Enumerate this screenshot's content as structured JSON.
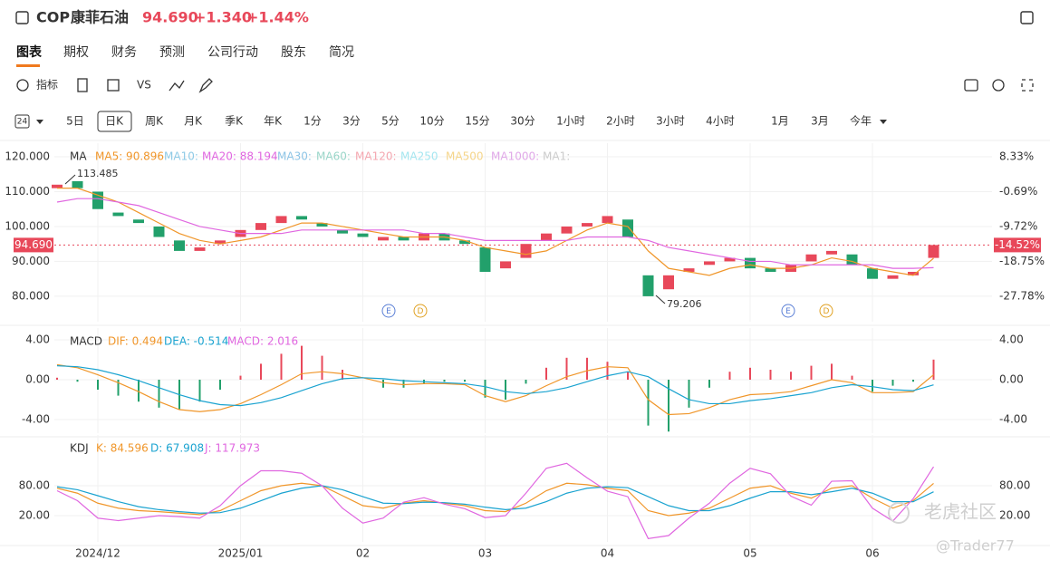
{
  "header": {
    "symbol": "COP",
    "name": "康菲石油",
    "price": "94.690",
    "change": "+1.340",
    "percent": "+1.44%"
  },
  "tabs": [
    "图表",
    "期权",
    "财务",
    "预测",
    "公司行动",
    "股东",
    "简况"
  ],
  "tools": [
    "指标",
    "VS"
  ],
  "period_icon": "24",
  "periods": [
    "5日",
    "日K",
    "周K",
    "月K",
    "季K",
    "年K",
    "1分",
    "3分",
    "5分",
    "10分",
    "15分",
    "30分",
    "1小时",
    "2小时",
    "3小时",
    "4小时",
    "1月",
    "3月",
    "今年"
  ],
  "watermark": [
    "老虎社区",
    "@Trader77"
  ],
  "chart_data": [
    {
      "type": "candlestick",
      "categories": [
        null,
        null,
        "2024/12",
        null,
        null,
        null,
        null,
        null,
        null,
        "2025/01",
        null,
        null,
        null,
        null,
        null,
        "02",
        null,
        null,
        null,
        null,
        null,
        "03",
        null,
        null,
        null,
        null,
        null,
        "04",
        null,
        null,
        null,
        null,
        null,
        null,
        "05",
        null,
        null,
        null,
        null,
        null,
        "06",
        null,
        null,
        null
      ],
      "open": [
        111,
        113,
        110,
        104,
        102,
        100,
        96,
        93,
        95,
        97,
        99,
        101,
        103,
        101,
        99,
        98,
        96,
        97,
        96,
        98,
        96,
        94,
        88,
        91,
        96,
        98,
        100,
        101,
        102,
        86,
        82,
        87,
        89,
        90,
        91,
        88,
        87,
        90,
        92,
        92,
        88,
        85,
        86,
        91
      ],
      "close": [
        112,
        111,
        105,
        103,
        101,
        97,
        93,
        94,
        96,
        99,
        101,
        103,
        102,
        100,
        98,
        97,
        97,
        96,
        98,
        96,
        95,
        87,
        90,
        95,
        98,
        100,
        101,
        103,
        97,
        80,
        86,
        88,
        90,
        91,
        88,
        87,
        89,
        92,
        93,
        89,
        85,
        86,
        87,
        94.69
      ],
      "up_color": "#e8485a",
      "down_color": "#22a06b",
      "series": [
        {
          "color": "#f0962a",
          "values": [
            111,
            111,
            109,
            107,
            104,
            101,
            98,
            96,
            95,
            96,
            97,
            99,
            101,
            101,
            100,
            99,
            98,
            97,
            97,
            97,
            96,
            94,
            93,
            92,
            93,
            96,
            99,
            101,
            100,
            93,
            88,
            87,
            86,
            88,
            89,
            88,
            88,
            89,
            91,
            90,
            88,
            87,
            86,
            90.896
          ]
        },
        {
          "color": "#e067e0",
          "values": [
            107,
            108,
            108,
            107,
            106,
            104,
            102,
            100,
            99,
            98,
            98,
            98,
            99,
            99,
            99,
            99,
            99,
            99,
            98,
            98,
            97,
            96,
            96,
            96,
            96,
            96,
            97,
            97,
            97,
            96,
            94,
            93,
            92,
            91,
            90,
            90,
            89,
            89,
            89,
            89,
            89,
            88,
            88,
            88.194
          ]
        }
      ],
      "legend": [
        {
          "label": "MA",
          "color": "#333333"
        },
        {
          "label": "MA5: 90.896",
          "color": "#f0962a"
        },
        {
          "label": "MA10:",
          "color": "#8ecae6"
        },
        {
          "label": "MA20: 88.194",
          "color": "#e067e0"
        },
        {
          "label": "MA30:",
          "color": "#8ec5e6"
        },
        {
          "label": "MA60:",
          "color": "#9ad6c9"
        },
        {
          "label": "MA120:",
          "color": "#f4a7b0"
        },
        {
          "label": "MA250",
          "color": "#a5e6f0"
        },
        {
          "label": "MA500",
          "color": "#f5d58a"
        },
        {
          "label": "MA1000:",
          "color": "#e0a8e8"
        },
        {
          "label": "MA1:",
          "color": "#cccccc"
        }
      ],
      "annotations": [
        "113.485",
        "79.206"
      ],
      "events": [
        "E",
        "D",
        "E",
        "D"
      ],
      "last_price": {
        "value": 94.69,
        "label": "94.690"
      },
      "last_percent": {
        "value": -14.52,
        "label": "-14.52%"
      },
      "ylim": [
        72.7,
        123.9
      ],
      "yticks": [
        {
          "value": 120,
          "label": "120.000"
        },
        {
          "value": 110,
          "label": "110.000"
        },
        {
          "value": 100,
          "label": "100.000"
        },
        {
          "value": 90,
          "label": "90.000"
        },
        {
          "value": 80,
          "label": "80.000"
        }
      ],
      "y2lim": [
        -34.37,
        11.85
      ],
      "y2ticks": [
        {
          "value": 8.33,
          "label": "8.33%"
        },
        {
          "value": -0.69,
          "label": "-0.69%"
        },
        {
          "value": -9.72,
          "label": "-9.72%"
        },
        {
          "value": -18.75,
          "label": "-18.75%"
        },
        {
          "value": -27.78,
          "label": "-27.78%"
        }
      ]
    },
    {
      "type": "combo",
      "series": [
        {
          "color": "#f0962a",
          "values": [
            1.5,
            1.2,
            0.5,
            -0.3,
            -1.2,
            -2.2,
            -3.0,
            -3.2,
            -3.0,
            -2.4,
            -1.5,
            -0.5,
            0.6,
            0.8,
            0.6,
            0.2,
            -0.3,
            -0.5,
            -0.4,
            -0.4,
            -0.5,
            -1.6,
            -2.2,
            -1.6,
            -0.6,
            0.3,
            0.9,
            1.3,
            1.2,
            -2.0,
            -3.5,
            -3.4,
            -2.8,
            -2.0,
            -1.5,
            -1.4,
            -1.2,
            -0.6,
            0.0,
            -0.3,
            -1.3,
            -1.3,
            -1.2,
            0.494
          ]
        },
        {
          "color": "#1aa3d0",
          "values": [
            1.4,
            1.3,
            1.0,
            0.5,
            -0.1,
            -0.8,
            -1.5,
            -2.1,
            -2.5,
            -2.6,
            -2.3,
            -1.8,
            -1.1,
            -0.4,
            0.1,
            0.2,
            0.1,
            -0.1,
            -0.2,
            -0.3,
            -0.4,
            -0.7,
            -1.2,
            -1.4,
            -1.2,
            -0.8,
            -0.2,
            0.4,
            0.8,
            0.3,
            -0.9,
            -2.0,
            -2.4,
            -2.4,
            -2.1,
            -1.9,
            -1.6,
            -1.3,
            -0.8,
            -0.5,
            -0.7,
            -1.0,
            -1.1,
            -0.514
          ]
        }
      ],
      "bars": {
        "up_color": "#e8485a",
        "down_color": "#22a06b",
        "values": [
          0.2,
          -0.2,
          -1.0,
          -1.6,
          -2.2,
          -2.8,
          -3.0,
          -2.2,
          -1.0,
          0.4,
          1.6,
          2.6,
          3.4,
          2.4,
          1.0,
          0,
          -0.8,
          -0.8,
          -0.4,
          -0.2,
          -0.2,
          -1.8,
          -2.0,
          -0.4,
          1.2,
          2.2,
          2.2,
          1.8,
          0.8,
          -4.6,
          -5.2,
          -2.8,
          -0.8,
          0.8,
          1.2,
          1.0,
          0.8,
          1.4,
          1.6,
          0.4,
          -1.2,
          -0.6,
          -0.2,
          2.016
        ]
      },
      "legend": [
        {
          "label": "MACD",
          "color": "#333333"
        },
        {
          "label": "DIF: 0.494",
          "color": "#f0962a"
        },
        {
          "label": "DEA: -0.514",
          "color": "#1aa3d0"
        },
        {
          "label": "MACD: 2.016",
          "color": "#e067e0"
        }
      ],
      "ylim": [
        -5.36,
        5.18
      ],
      "yticks": [
        {
          "value": 4,
          "label": "4.00"
        },
        {
          "value": 0,
          "label": "0.00"
        },
        {
          "value": -4,
          "label": "-4.00"
        }
      ]
    },
    {
      "type": "line",
      "series": [
        {
          "color": "#f0962a",
          "values": [
            75,
            65,
            45,
            35,
            30,
            28,
            25,
            22,
            30,
            50,
            70,
            80,
            85,
            80,
            60,
            40,
            35,
            45,
            50,
            45,
            40,
            30,
            28,
            45,
            70,
            85,
            82,
            75,
            70,
            30,
            20,
            25,
            35,
            55,
            75,
            80,
            65,
            55,
            75,
            80,
            55,
            35,
            50,
            84.596
          ]
        },
        {
          "color": "#1aa3d0",
          "values": [
            78,
            72,
            60,
            48,
            38,
            32,
            28,
            25,
            26,
            35,
            50,
            65,
            75,
            80,
            72,
            58,
            45,
            44,
            47,
            46,
            43,
            37,
            32,
            35,
            48,
            65,
            75,
            78,
            76,
            58,
            40,
            30,
            30,
            40,
            55,
            68,
            68,
            62,
            68,
            75,
            65,
            48,
            48,
            67.908
          ]
        },
        {
          "color": "#e067e0",
          "values": [
            70,
            50,
            15,
            10,
            15,
            20,
            18,
            15,
            40,
            80,
            110,
            110,
            105,
            80,
            35,
            5,
            15,
            47,
            56,
            43,
            34,
            16,
            20,
            65,
            115,
            125,
            96,
            69,
            58,
            -26,
            -20,
            15,
            45,
            85,
            115,
            104,
            59,
            41,
            89,
            90,
            35,
            9,
            54,
            117.973
          ]
        }
      ],
      "legend": [
        {
          "label": "KDJ",
          "color": "#333333"
        },
        {
          "label": "K: 84.596",
          "color": "#f0962a"
        },
        {
          "label": "D: 67.908",
          "color": "#1aa3d0"
        },
        {
          "label": "J: 117.973",
          "color": "#e067e0"
        }
      ],
      "ylim": [
        -32.7,
        181.8
      ],
      "yticks": [
        {
          "value": 80,
          "label": "80.00"
        },
        {
          "value": 20,
          "label": "20.00"
        }
      ]
    }
  ]
}
